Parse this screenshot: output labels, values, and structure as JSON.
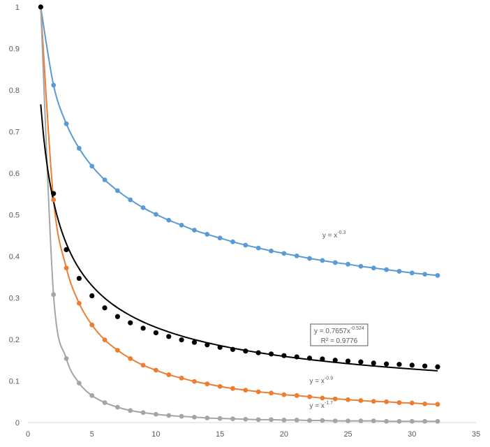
{
  "chart_data": {
    "type": "scatter",
    "title": "",
    "xlabel": "",
    "ylabel": "",
    "xlim": [
      0,
      35
    ],
    "ylim": [
      0,
      1
    ],
    "x_ticks": [
      "0",
      "5",
      "10",
      "15",
      "20",
      "25",
      "30",
      "35"
    ],
    "y_ticks": [
      "0",
      "0.1",
      "0.2",
      "0.3",
      "0.4",
      "0.5",
      "0.6",
      "0.7",
      "0.8",
      "0.9",
      "1"
    ],
    "grid": false,
    "legend": "none",
    "x": [
      1,
      2,
      3,
      4,
      5,
      6,
      7,
      8,
      9,
      10,
      11,
      12,
      13,
      14,
      15,
      16,
      17,
      18,
      19,
      20,
      21,
      22,
      23,
      24,
      25,
      26,
      27,
      28,
      29,
      30,
      31,
      32
    ],
    "series": [
      {
        "color": "#5B9BD5",
        "markers": true,
        "line": "smooth",
        "values": [
          1.0,
          0.812,
          0.719,
          0.66,
          0.617,
          0.584,
          0.558,
          0.536,
          0.517,
          0.501,
          0.487,
          0.475,
          0.463,
          0.453,
          0.444,
          0.435,
          0.427,
          0.42,
          0.413,
          0.407,
          0.401,
          0.395,
          0.39,
          0.385,
          0.381,
          0.376,
          0.372,
          0.368,
          0.364,
          0.36,
          0.357,
          0.354
        ],
        "annotation": {
          "text": "y = x",
          "sup": "-0.3",
          "x": 23,
          "y": 0.445
        }
      },
      {
        "color": "#ED7D31",
        "markers": true,
        "line": "smooth",
        "values": [
          1.0,
          0.536,
          0.372,
          0.287,
          0.235,
          0.199,
          0.174,
          0.154,
          0.138,
          0.126,
          0.115,
          0.107,
          0.099,
          0.093,
          0.087,
          0.082,
          0.078,
          0.074,
          0.071,
          0.067,
          0.065,
          0.062,
          0.059,
          0.057,
          0.055,
          0.053,
          0.051,
          0.05,
          0.048,
          0.047,
          0.045,
          0.044
        ],
        "annotation": {
          "text": "y = x",
          "sup": "-0.9",
          "x": 22,
          "y": 0.095
        }
      },
      {
        "color": "#A5A5A5",
        "markers": true,
        "line": "smooth",
        "values": [
          1.0,
          0.308,
          0.154,
          0.095,
          0.065,
          0.048,
          0.037,
          0.029,
          0.024,
          0.02,
          0.017,
          0.015,
          0.013,
          0.011,
          0.01,
          0.009,
          0.008,
          0.007,
          0.007,
          0.006,
          0.006,
          0.005,
          0.005,
          0.004,
          0.004,
          0.004,
          0.004,
          0.003,
          0.003,
          0.003,
          0.003,
          0.003
        ],
        "annotation": {
          "text": "y = x",
          "sup": "-1.7",
          "x": 22,
          "y": 0.035
        }
      },
      {
        "color": "#000000",
        "markers": true,
        "line": "none",
        "values": [
          1.0,
          0.551,
          0.416,
          0.347,
          0.305,
          0.276,
          0.255,
          0.24,
          0.227,
          0.216,
          0.207,
          0.199,
          0.193,
          0.187,
          0.181,
          0.176,
          0.172,
          0.168,
          0.165,
          0.161,
          0.158,
          0.155,
          0.153,
          0.15,
          0.148,
          0.146,
          0.143,
          0.141,
          0.14,
          0.138,
          0.136,
          0.134
        ]
      }
    ],
    "trendline": {
      "color": "#000000",
      "type": "power",
      "a": 0.7657,
      "b": -0.524,
      "x_range": [
        1,
        32
      ],
      "equation_text": "y = 0.7657x",
      "equation_sup": "-0.524",
      "r2_text": "R² = 0.9776",
      "label_x": 23,
      "label_y": 0.2
    }
  }
}
